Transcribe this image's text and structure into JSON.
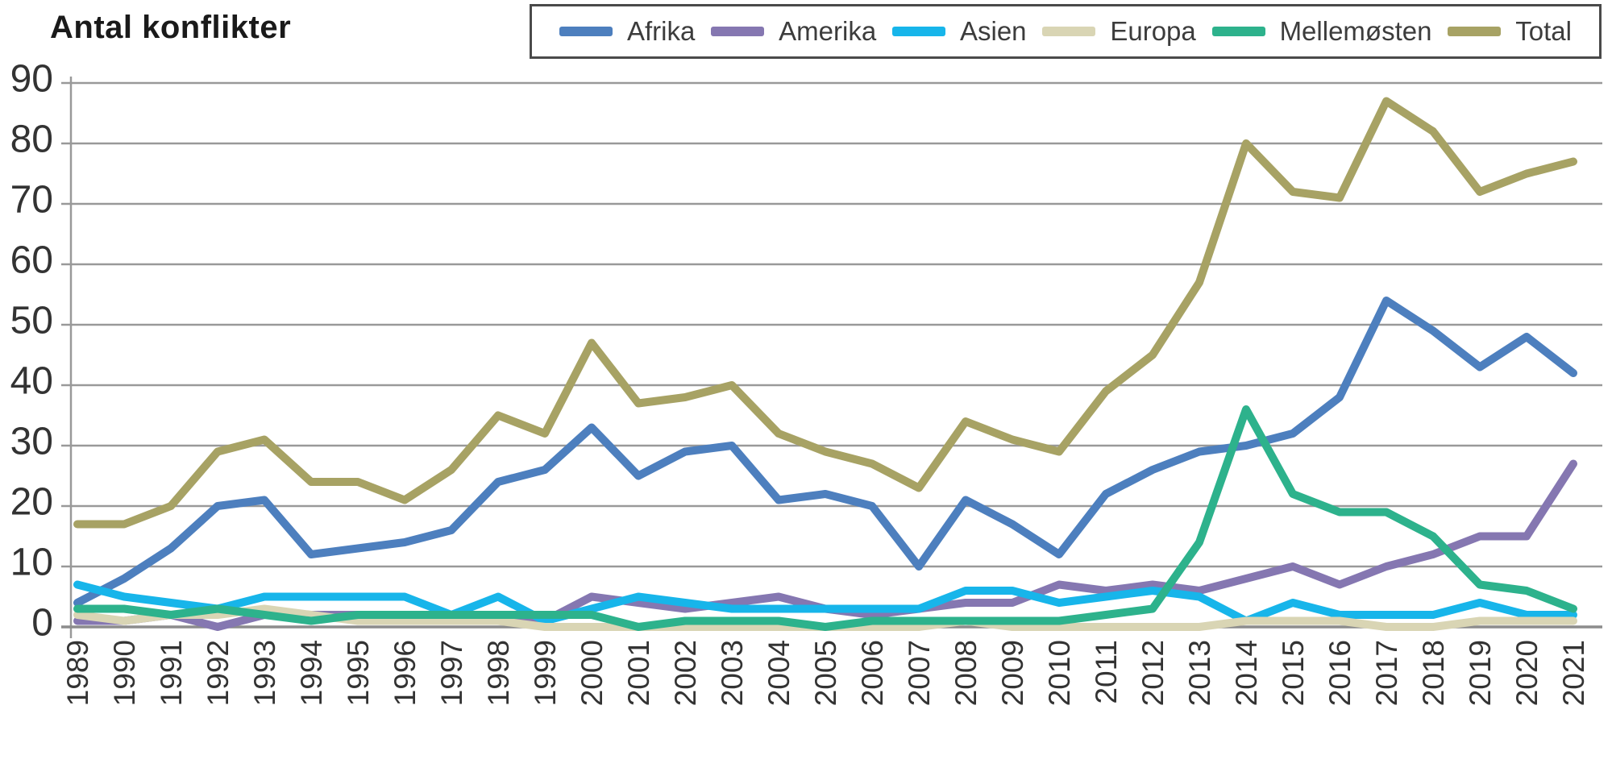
{
  "title": "Antal konflikter",
  "chart_data": {
    "type": "line",
    "title": "Antal konflikter",
    "xlabel": "",
    "ylabel": "",
    "x": [
      1989,
      1990,
      1991,
      1992,
      1993,
      1994,
      1995,
      1996,
      1997,
      1998,
      1999,
      2000,
      2001,
      2002,
      2003,
      2004,
      2005,
      2006,
      2007,
      2008,
      2009,
      2010,
      2011,
      2012,
      2013,
      2014,
      2015,
      2016,
      2017,
      2018,
      2019,
      2020,
      2021
    ],
    "series": [
      {
        "name": "Afrika",
        "color": "#4d7fbe",
        "values": [
          4,
          8,
          13,
          20,
          21,
          12,
          13,
          14,
          16,
          24,
          26,
          33,
          25,
          29,
          30,
          21,
          22,
          20,
          10,
          21,
          17,
          12,
          22,
          26,
          29,
          30,
          32,
          38,
          54,
          49,
          43,
          48,
          42
        ]
      },
      {
        "name": "Amerika",
        "color": "#8577b1",
        "values": [
          1,
          1,
          2,
          0,
          2,
          2,
          2,
          1,
          2,
          2,
          1,
          5,
          4,
          3,
          4,
          5,
          3,
          2,
          3,
          4,
          4,
          7,
          6,
          7,
          6,
          8,
          10,
          7,
          10,
          12,
          15,
          15,
          27
        ]
      },
      {
        "name": "Asien",
        "color": "#17b5ea",
        "values": [
          7,
          5,
          4,
          3,
          5,
          5,
          5,
          5,
          2,
          5,
          1,
          3,
          5,
          4,
          3,
          3,
          3,
          3,
          3,
          6,
          6,
          4,
          5,
          6,
          5,
          1,
          4,
          2,
          2,
          2,
          4,
          2,
          2
        ]
      },
      {
        "name": "Europa",
        "color": "#d9d5b4",
        "values": [
          2,
          1,
          2,
          2,
          3,
          2,
          1,
          1,
          1,
          1,
          0,
          0,
          0,
          0,
          0,
          0,
          0,
          0,
          0,
          1,
          0,
          0,
          0,
          0,
          0,
          1,
          1,
          1,
          0,
          0,
          1,
          1,
          1
        ]
      },
      {
        "name": "Mellemøsten",
        "color": "#2db28c",
        "values": [
          3,
          3,
          2,
          3,
          2,
          1,
          2,
          2,
          2,
          2,
          2,
          2,
          0,
          1,
          1,
          1,
          0,
          1,
          1,
          1,
          1,
          1,
          2,
          3,
          14,
          36,
          22,
          19,
          19,
          15,
          7,
          6,
          3
        ]
      },
      {
        "name": "Total",
        "color": "#a7a264",
        "values": [
          17,
          17,
          20,
          29,
          31,
          24,
          24,
          21,
          26,
          35,
          32,
          47,
          37,
          38,
          40,
          32,
          29,
          27,
          23,
          34,
          31,
          29,
          39,
          45,
          57,
          80,
          72,
          71,
          87,
          82,
          72,
          75,
          77
        ]
      }
    ],
    "y_ticks": [
      0,
      10,
      20,
      30,
      40,
      50,
      60,
      70,
      80,
      90
    ],
    "ylim": [
      0,
      90
    ],
    "grid": true,
    "legend_position": "top",
    "colors": {
      "gridline": "#999999",
      "axis": "#8c8c8c",
      "tick_text": "#333333",
      "legend_border": "#4a4a4a",
      "legend_text": "#3c3c3c"
    }
  }
}
